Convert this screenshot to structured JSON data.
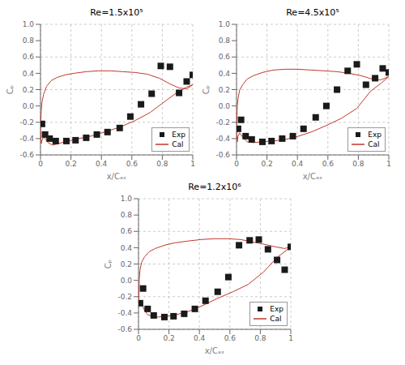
{
  "chart_data": [
    {
      "type": "line",
      "title": "Re=1.5x10⁵",
      "xlabel": "x/Cₐₓ",
      "ylabel": "Cₚ",
      "xlim": [
        0,
        1
      ],
      "ylim": [
        -0.6,
        1.0
      ],
      "xticks": [
        0,
        0.2,
        0.4,
        0.6,
        0.8,
        1
      ],
      "yticks": [
        -0.6,
        -0.4,
        -0.2,
        {
          "value": 0,
          "label": "0.0"
        },
        0.2,
        0.4,
        0.6,
        0.8,
        {
          "value": 1,
          "label": "1.0"
        }
      ],
      "grid": true,
      "legend": "lower right",
      "series": [
        {
          "name": "Exp",
          "type": "scatter",
          "color": "#1a1a1a",
          "marker": "square",
          "x": [
            0.01,
            0.03,
            0.06,
            0.1,
            0.17,
            0.23,
            0.3,
            0.37,
            0.44,
            0.52,
            0.59,
            0.66,
            0.73,
            0.79,
            0.85,
            0.91,
            0.96,
            1.0
          ],
          "values": [
            -0.22,
            -0.35,
            -0.4,
            -0.43,
            -0.43,
            -0.42,
            -0.39,
            -0.35,
            -0.32,
            -0.27,
            -0.13,
            0.02,
            0.15,
            0.49,
            0.48,
            0.16,
            0.3,
            0.38
          ]
        },
        {
          "name": "Cal",
          "type": "line",
          "color": "#c0392b",
          "x": [
            0.0,
            0.005,
            0.01,
            0.02,
            0.04,
            0.07,
            0.11,
            0.16,
            0.22,
            0.3,
            0.38,
            0.46,
            0.54,
            0.62,
            0.7,
            0.78,
            0.85,
            0.91,
            0.96,
            1.0
          ],
          "values": [
            -0.27,
            -0.05,
            0.05,
            0.14,
            0.24,
            0.31,
            0.35,
            0.38,
            0.4,
            0.42,
            0.43,
            0.43,
            0.42,
            0.41,
            0.39,
            0.34,
            0.27,
            0.22,
            0.21,
            0.26
          ]
        },
        {
          "type": "line",
          "color": "#c0392b",
          "x": [
            0.0,
            0.005,
            0.01,
            0.02,
            0.03,
            0.05,
            0.08,
            0.12,
            0.18,
            0.25,
            0.33,
            0.42,
            0.52,
            0.62,
            0.72,
            0.82,
            0.9,
            0.96,
            1.0
          ],
          "values": [
            -0.27,
            -0.46,
            -0.42,
            -0.38,
            -0.4,
            -0.45,
            -0.48,
            -0.46,
            -0.43,
            -0.4,
            -0.37,
            -0.32,
            -0.26,
            -0.18,
            -0.08,
            0.06,
            0.17,
            0.23,
            0.26
          ]
        }
      ]
    },
    {
      "type": "line",
      "title": "Re=4.5x10⁵",
      "xlabel": "x/Cₐₓ",
      "ylabel": "Cₚ",
      "xlim": [
        0,
        1
      ],
      "ylim": [
        -0.6,
        1.0
      ],
      "xticks": [
        0,
        0.2,
        0.4,
        0.6,
        0.8,
        1
      ],
      "yticks": [
        -0.6,
        -0.4,
        -0.2,
        {
          "value": 0,
          "label": "0.0"
        },
        0.2,
        0.4,
        0.6,
        0.8,
        {
          "value": 1,
          "label": "1.0"
        }
      ],
      "grid": true,
      "legend": "lower right",
      "series": [
        {
          "name": "Exp",
          "type": "scatter",
          "color": "#1a1a1a",
          "marker": "square",
          "x": [
            0.01,
            0.03,
            0.06,
            0.1,
            0.17,
            0.23,
            0.3,
            0.37,
            0.44,
            0.52,
            0.59,
            0.66,
            0.73,
            0.79,
            0.85,
            0.91,
            0.96,
            1.0
          ],
          "values": [
            -0.28,
            -0.17,
            -0.37,
            -0.41,
            -0.44,
            -0.43,
            -0.4,
            -0.37,
            -0.28,
            -0.14,
            0.0,
            0.2,
            0.43,
            0.51,
            0.26,
            0.34,
            0.46,
            0.41
          ]
        },
        {
          "name": "Cal",
          "type": "line",
          "color": "#c0392b",
          "x": [
            0.0,
            0.005,
            0.01,
            0.02,
            0.04,
            0.07,
            0.11,
            0.17,
            0.24,
            0.32,
            0.4,
            0.49,
            0.58,
            0.66,
            0.74,
            0.82,
            0.89,
            0.95,
            1.0
          ],
          "values": [
            -0.3,
            0.0,
            0.09,
            0.19,
            0.26,
            0.33,
            0.37,
            0.41,
            0.44,
            0.45,
            0.45,
            0.44,
            0.43,
            0.42,
            0.4,
            0.37,
            0.33,
            0.32,
            0.36
          ]
        },
        {
          "type": "line",
          "color": "#c0392b",
          "x": [
            0.0,
            0.005,
            0.01,
            0.02,
            0.04,
            0.07,
            0.11,
            0.16,
            0.22,
            0.3,
            0.39,
            0.49,
            0.59,
            0.69,
            0.79,
            0.88,
            0.95,
            1.0
          ],
          "values": [
            -0.3,
            -0.44,
            -0.37,
            -0.33,
            -0.38,
            -0.44,
            -0.45,
            -0.44,
            -0.43,
            -0.42,
            -0.38,
            -0.32,
            -0.24,
            -0.15,
            -0.03,
            0.18,
            0.28,
            0.36
          ]
        }
      ]
    },
    {
      "type": "line",
      "title": "Re=1.2x10⁶",
      "xlabel": "x/Cₐₓ",
      "ylabel": "Cₚ",
      "xlim": [
        0,
        1
      ],
      "ylim": [
        -0.6,
        1.0
      ],
      "xticks": [
        0,
        0.2,
        0.4,
        0.6,
        0.8,
        1
      ],
      "yticks": [
        -0.6,
        -0.4,
        -0.2,
        {
          "value": 0,
          "label": "0.0"
        },
        0.2,
        0.4,
        0.6,
        0.8,
        {
          "value": 1,
          "label": "1.0"
        }
      ],
      "grid": true,
      "legend": "lower right",
      "series": [
        {
          "name": "Exp",
          "type": "scatter",
          "color": "#1a1a1a",
          "marker": "square",
          "x": [
            0.01,
            0.03,
            0.06,
            0.1,
            0.17,
            0.23,
            0.3,
            0.37,
            0.44,
            0.52,
            0.59,
            0.66,
            0.73,
            0.79,
            0.85,
            0.91,
            0.96,
            1.0
          ],
          "values": [
            -0.28,
            -0.1,
            -0.35,
            -0.43,
            -0.45,
            -0.44,
            -0.41,
            -0.35,
            -0.25,
            -0.14,
            0.04,
            0.43,
            0.49,
            0.5,
            0.38,
            0.25,
            0.13,
            0.41
          ]
        },
        {
          "name": "Cal",
          "type": "line",
          "color": "#c0392b",
          "x": [
            0.0,
            0.005,
            0.01,
            0.02,
            0.04,
            0.07,
            0.11,
            0.17,
            0.24,
            0.32,
            0.41,
            0.5,
            0.59,
            0.67,
            0.75,
            0.83,
            0.9,
            0.96,
            1.0
          ],
          "values": [
            -0.3,
            0.01,
            0.13,
            0.22,
            0.29,
            0.35,
            0.39,
            0.43,
            0.46,
            0.48,
            0.5,
            0.51,
            0.51,
            0.5,
            0.47,
            0.44,
            0.41,
            0.39,
            0.41
          ]
        },
        {
          "type": "line",
          "color": "#c0392b",
          "x": [
            0.0,
            0.005,
            0.01,
            0.015,
            0.025,
            0.04,
            0.06,
            0.09,
            0.13,
            0.18,
            0.25,
            0.33,
            0.42,
            0.52,
            0.62,
            0.72,
            0.82,
            0.91,
            1.0
          ],
          "values": [
            -0.3,
            -0.29,
            -0.28,
            -0.27,
            -0.3,
            -0.37,
            -0.42,
            -0.44,
            -0.45,
            -0.44,
            -0.42,
            -0.38,
            -0.31,
            -0.22,
            -0.14,
            -0.05,
            0.1,
            0.28,
            0.41
          ]
        }
      ]
    }
  ]
}
